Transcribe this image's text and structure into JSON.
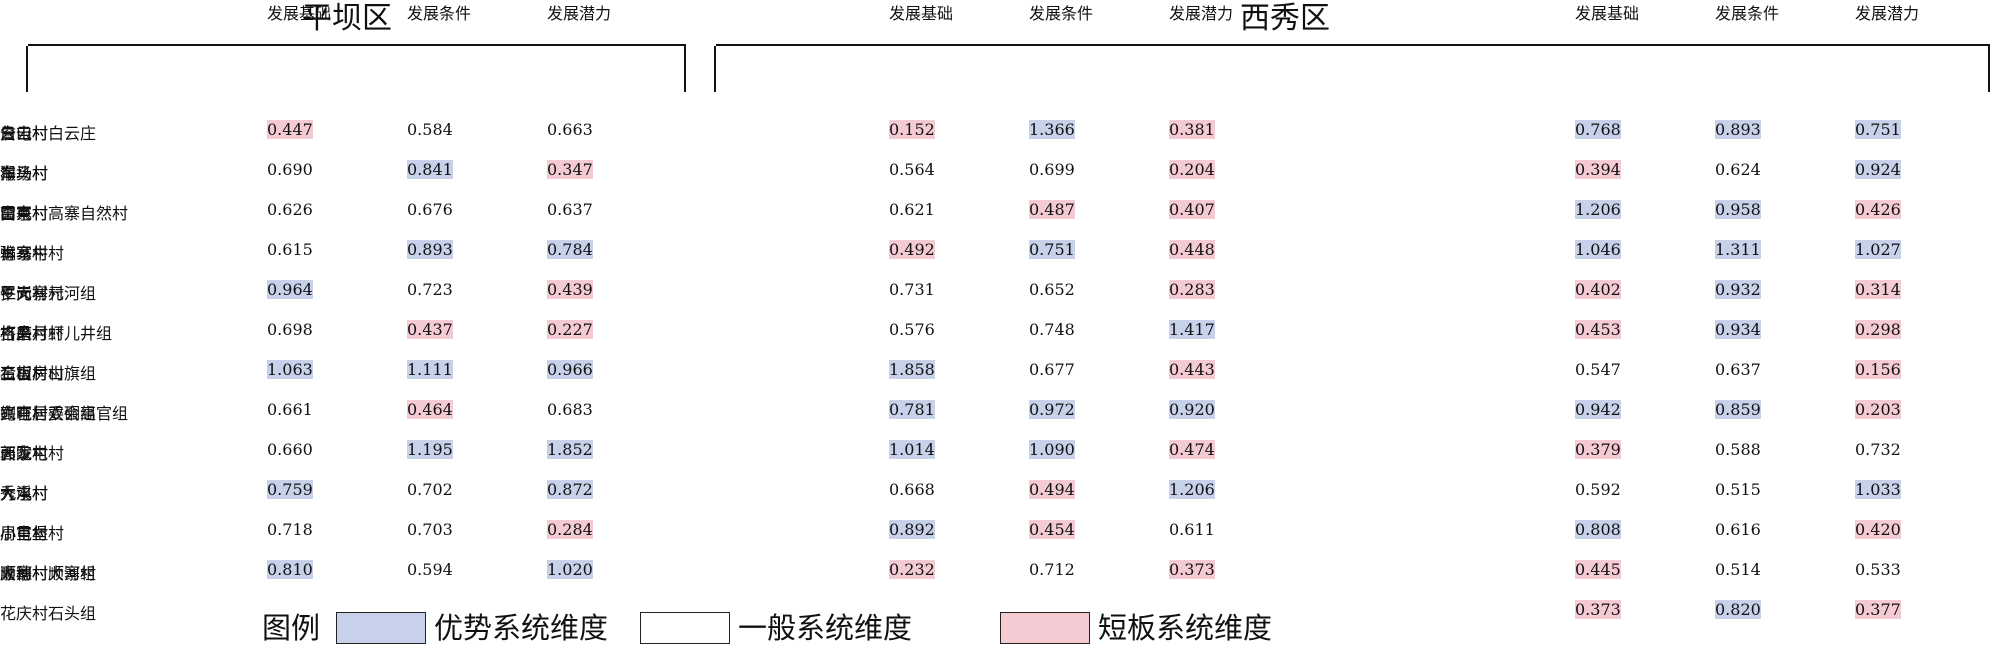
{
  "colors": {
    "advantage": "#c8d1ea",
    "normal": "#ffffff",
    "shortboard": "#f5cbd3"
  },
  "regions": [
    {
      "title": "平坝区"
    },
    {
      "title": "西秀区"
    }
  ],
  "columns": [
    "发展基础",
    "发展条件",
    "发展潜力"
  ],
  "legend": {
    "title": "图例",
    "items": [
      {
        "label": "优势系统维度",
        "color": "advantage"
      },
      {
        "label": "一般系统维度",
        "color": "normal"
      },
      {
        "label": "短板系统维度",
        "color": "shortboard"
      }
    ]
  },
  "chart_data": {
    "type": "table",
    "columns": [
      "发展基础",
      "发展条件",
      "发展潜力"
    ],
    "panels": [
      {
        "region": "平坝区",
        "rows": [
          {
            "name": "白云村白云庄",
            "values": [
              "0.447",
              "0.584",
              "0.663"
            ],
            "classes": [
              "shortboard",
              "normal",
              "normal"
            ]
          },
          {
            "name": "车头村",
            "values": [
              "0.690",
              "0.841",
              "0.347"
            ],
            "classes": [
              "normal",
              "advantage",
              "shortboard"
            ]
          },
          {
            "name": "高寨村高寨自然村",
            "values": [
              "0.626",
              "0.676",
              "0.637"
            ],
            "classes": [
              "normal",
              "normal",
              "normal"
            ]
          },
          {
            "name": "肖家村",
            "values": [
              "0.615",
              "0.893",
              "0.784"
            ],
            "classes": [
              "normal",
              "advantage",
              "advantage"
            ]
          },
          {
            "name": "平元村元河组",
            "values": [
              "0.964",
              "0.723",
              "0.439"
            ],
            "classes": [
              "advantage",
              "normal",
              "shortboard"
            ]
          },
          {
            "name": "打磨村虾儿井组",
            "values": [
              "0.698",
              "0.437",
              "0.227"
            ],
            "classes": [
              "normal",
              "shortboard",
              "shortboard"
            ]
          },
          {
            "name": "二官村",
            "values": [
              "1.063",
              "1.111",
              "0.966"
            ],
            "classes": [
              "advantage",
              "advantage",
              "advantage"
            ]
          },
          {
            "name": "兴旺村双硐组",
            "values": [
              "0.661",
              "0.464",
              "0.683"
            ],
            "classes": [
              "normal",
              "shortboard",
              "normal"
            ]
          },
          {
            "name": "天龙村",
            "values": [
              "0.660",
              "1.195",
              "1.852"
            ],
            "classes": [
              "normal",
              "advantage",
              "advantage"
            ]
          },
          {
            "name": "大屯村",
            "values": [
              "0.759",
              "0.702",
              "0.872"
            ],
            "classes": [
              "advantage",
              "normal",
              "advantage"
            ]
          },
          {
            "name": "小屯村",
            "values": [
              "0.718",
              "0.703",
              "0.284"
            ],
            "classes": [
              "normal",
              "normal",
              "shortboard"
            ]
          },
          {
            "name": "大寨村",
            "values": [
              "0.810",
              "0.594",
              "1.020"
            ],
            "classes": [
              "advantage",
              "normal",
              "advantage"
            ]
          }
        ]
      },
      {
        "region": "西秀区",
        "rows": [
          {
            "name": "云山村",
            "values": [
              "0.152",
              "1.366",
              "0.381"
            ],
            "classes": [
              "shortboard",
              "advantage",
              "shortboard"
            ]
          },
          {
            "name": "猴场村",
            "values": [
              "0.564",
              "0.699",
              "0.204"
            ],
            "classes": [
              "normal",
              "normal",
              "shortboard"
            ]
          },
          {
            "name": "雷屯村",
            "values": [
              "0.621",
              "0.487",
              "0.407"
            ],
            "classes": [
              "normal",
              "shortboard",
              "shortboard"
            ]
          },
          {
            "name": "本寨村",
            "values": [
              "0.492",
              "0.751",
              "0.448"
            ],
            "classes": [
              "shortboard",
              "advantage",
              "shortboard"
            ]
          },
          {
            "name": "仁岗村",
            "values": [
              "0.731",
              "0.652",
              "0.283"
            ],
            "classes": [
              "normal",
              "normal",
              "shortboard"
            ]
          },
          {
            "name": "吉昌村",
            "values": [
              "0.576",
              "0.748",
              "1.417"
            ],
            "classes": [
              "normal",
              "normal",
              "advantage"
            ]
          },
          {
            "name": "石板房村",
            "values": [
              "1.858",
              "0.677",
              "0.443"
            ],
            "classes": [
              "advantage",
              "normal",
              "shortboard"
            ]
          },
          {
            "name": "鲍屯村",
            "values": [
              "0.781",
              "0.972",
              "0.920"
            ],
            "classes": [
              "advantage",
              "advantage",
              "advantage"
            ]
          },
          {
            "name": "西陇村",
            "values": [
              "1.014",
              "1.090",
              "0.474"
            ],
            "classes": [
              "advantage",
              "advantage",
              "shortboard"
            ]
          },
          {
            "name": "九溪村",
            "values": [
              "0.668",
              "0.494",
              "1.206"
            ],
            "classes": [
              "normal",
              "shortboard",
              "advantage"
            ]
          },
          {
            "name": "周官村",
            "values": [
              "0.892",
              "0.454",
              "0.611"
            ],
            "classes": [
              "advantage",
              "shortboard",
              "normal"
            ]
          },
          {
            "name": "嘉穗村大寨村",
            "values": [
              "0.232",
              "0.712",
              "0.373"
            ],
            "classes": [
              "shortboard",
              "normal",
              "shortboard"
            ]
          }
        ]
      },
      {
        "region": "西秀区",
        "rows": [
          {
            "name": "詹屯村",
            "values": [
              "0.768",
              "0.893",
              "0.751"
            ],
            "classes": [
              "advantage",
              "advantage",
              "advantage"
            ]
          },
          {
            "name": "海马村",
            "values": [
              "0.394",
              "0.624",
              "0.924"
            ],
            "classes": [
              "shortboard",
              "normal",
              "advantage"
            ]
          },
          {
            "name": "山京村",
            "values": [
              "1.206",
              "0.958",
              "0.426"
            ],
            "classes": [
              "advantage",
              "advantage",
              "shortboard"
            ]
          },
          {
            "name": "骟马牛村",
            "values": [
              "1.046",
              "1.311",
              "1.027"
            ],
            "classes": [
              "advantage",
              "advantage",
              "advantage"
            ]
          },
          {
            "name": "罗大寨村",
            "values": [
              "0.402",
              "0.932",
              "0.314"
            ],
            "classes": [
              "shortboard",
              "advantage",
              "shortboard"
            ]
          },
          {
            "name": "格来月村",
            "values": [
              "0.453",
              "0.934",
              "0.298"
            ],
            "classes": [
              "shortboard",
              "advantage",
              "shortboard"
            ]
          },
          {
            "name": "金山村山旗组",
            "values": [
              "0.547",
              "0.637",
              "0.156"
            ],
            "classes": [
              "normal",
              "normal",
              "shortboard"
            ]
          },
          {
            "name": "高官居委会高官组",
            "values": [
              "0.942",
              "0.859",
              "0.203"
            ],
            "classes": [
              "advantage",
              "advantage",
              "shortboard"
            ]
          },
          {
            "name": "郭家屯村",
            "values": [
              "0.379",
              "0.588",
              "0.732"
            ],
            "classes": [
              "shortboard",
              "normal",
              "normal"
            ]
          },
          {
            "name": "秀水村",
            "values": [
              "0.592",
              "0.515",
              "1.033"
            ],
            "classes": [
              "normal",
              "normal",
              "advantage"
            ]
          },
          {
            "name": "小呈堡村",
            "values": [
              "0.808",
              "0.616",
              "0.420"
            ],
            "classes": [
              "advantage",
              "normal",
              "shortboard"
            ]
          },
          {
            "name": "顺河村顺河组",
            "values": [
              "0.445",
              "0.514",
              "0.533"
            ],
            "classes": [
              "shortboard",
              "normal",
              "normal"
            ]
          },
          {
            "name": "花庆村石头组",
            "values": [
              "0.373",
              "0.820",
              "0.377"
            ],
            "classes": [
              "shortboard",
              "advantage",
              "shortboard"
            ]
          }
        ]
      }
    ]
  }
}
